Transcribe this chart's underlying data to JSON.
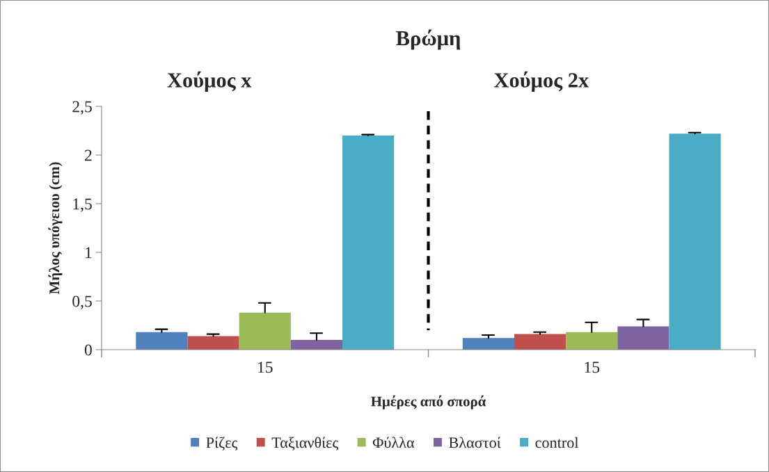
{
  "chart_data": {
    "type": "bar",
    "title": "Βρώμη",
    "xlabel": "Ημέρες από σπορά",
    "ylabel": "Μήλος υπόγειου (cm)",
    "categories": [
      "15",
      "15"
    ],
    "annotations": [
      "Χούμος x",
      "Χούμος 2x"
    ],
    "series": [
      {
        "name": "Ρίζες",
        "color": "#4f81bd",
        "values": [
          0.18,
          0.12
        ],
        "errors": [
          [
            0.18,
            0.21
          ],
          [
            0.12,
            0.15
          ]
        ]
      },
      {
        "name": "Ταξιανθίες",
        "color": "#c0504d",
        "values": [
          0.14,
          0.16
        ],
        "errors": [
          [
            0.14,
            0.16
          ],
          [
            0.16,
            0.18
          ]
        ]
      },
      {
        "name": "Φύλλα",
        "color": "#9bbb59",
        "values": [
          0.38,
          0.18
        ],
        "errors": [
          [
            0.38,
            0.48
          ],
          [
            0.18,
            0.28
          ]
        ]
      },
      {
        "name": "Βλαστοί",
        "color": "#8064a2",
        "values": [
          0.1,
          0.24
        ],
        "errors": [
          [
            0.1,
            0.17
          ],
          [
            0.24,
            0.31
          ]
        ]
      },
      {
        "name": "control",
        "color": "#4bacc6",
        "values": [
          2.2,
          2.22
        ],
        "errors": [
          [
            2.2,
            2.21
          ],
          [
            2.22,
            2.23
          ]
        ]
      }
    ],
    "ylim": [
      0,
      2.5
    ],
    "yticks": [
      0,
      {
        "value": 0.5,
        "label": "0,5"
      },
      1,
      {
        "value": 1.5,
        "label": "1,5"
      },
      2,
      {
        "value": 2.5,
        "label": "2,5"
      }
    ],
    "grid": false,
    "legend": "bottom"
  }
}
